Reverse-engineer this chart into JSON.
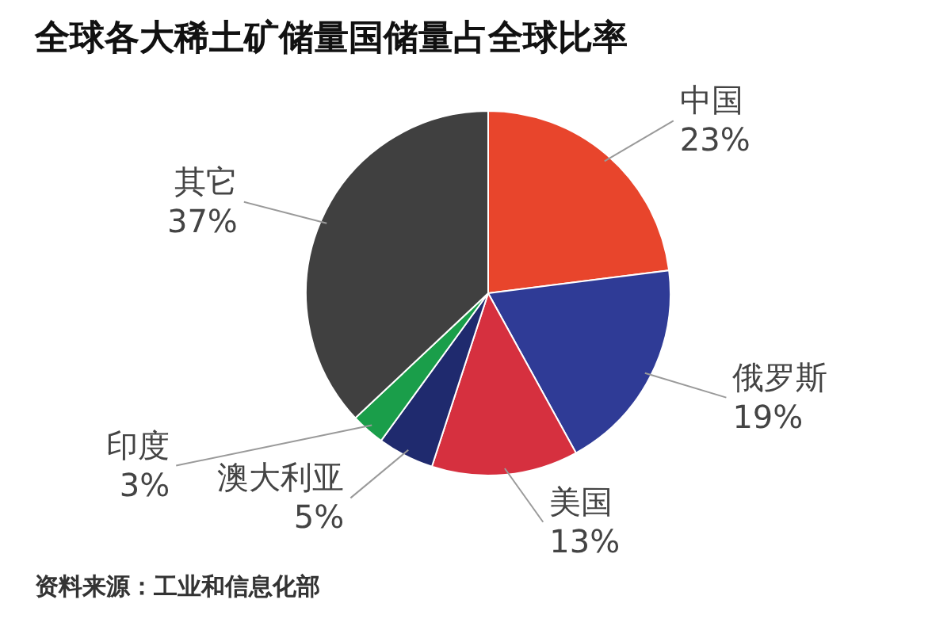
{
  "chart_data": {
    "type": "pie",
    "title": "全球各大稀土矿储量国储量占全球比率",
    "categories": [
      "中国",
      "俄罗斯",
      "美国",
      "澳大利亚",
      "印度",
      "其它"
    ],
    "values": [
      23,
      19,
      13,
      5,
      3,
      37
    ],
    "colors": [
      "#e8452c",
      "#2f3b96",
      "#d6303f",
      "#1f2a6e",
      "#1a9e4a",
      "#404040"
    ],
    "value_labels": [
      "23%",
      "19%",
      "13%",
      "5%",
      "3%",
      "37%"
    ],
    "annotations": [
      "资料来源：工业和信息化部"
    ]
  }
}
